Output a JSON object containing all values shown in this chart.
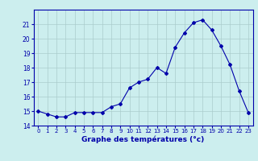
{
  "hours": [
    0,
    1,
    2,
    3,
    4,
    5,
    6,
    7,
    8,
    9,
    10,
    11,
    12,
    13,
    14,
    15,
    16,
    17,
    18,
    19,
    20,
    21,
    22,
    23
  ],
  "temperatures": [
    15.0,
    14.8,
    14.6,
    14.6,
    14.9,
    14.9,
    14.9,
    14.9,
    15.3,
    15.5,
    16.6,
    17.0,
    17.2,
    18.0,
    17.6,
    19.4,
    20.4,
    21.1,
    21.3,
    20.6,
    19.5,
    18.2,
    16.4,
    14.9
  ],
  "line_color": "#0000aa",
  "marker": "D",
  "marker_size": 2,
  "bg_color": "#cceeee",
  "grid_color": "#aacccc",
  "xlabel": "Graphe des températures (°c)",
  "xlabel_color": "#0000aa",
  "tick_color": "#0000aa",
  "ylim": [
    14,
    22
  ],
  "xlim": [
    -0.5,
    23.5
  ],
  "yticks": [
    14,
    15,
    16,
    17,
    18,
    19,
    20,
    21
  ],
  "xticks": [
    0,
    1,
    2,
    3,
    4,
    5,
    6,
    7,
    8,
    9,
    10,
    11,
    12,
    13,
    14,
    15,
    16,
    17,
    18,
    19,
    20,
    21,
    22,
    23
  ],
  "spine_color": "#0000aa",
  "fig_bg": "#cceeee"
}
